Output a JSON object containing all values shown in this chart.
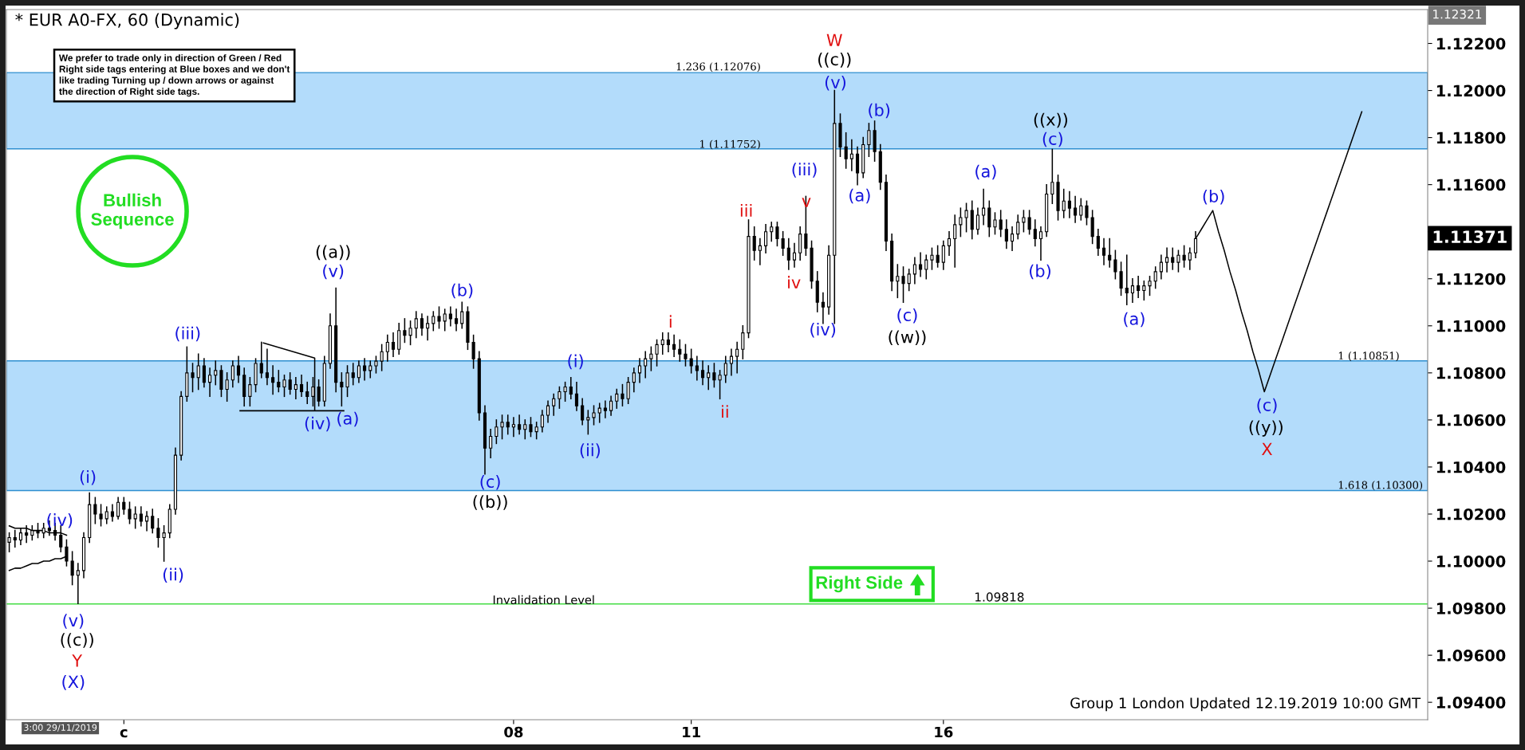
{
  "chart_data": {
    "type": "candlestick",
    "title": "* EUR A0-FX, 60 (Dynamic)",
    "color": "#000000",
    "ylim": [
      1.09326,
      1.12344
    ],
    "yticks": [
      {
        "value": 1.094,
        "label": "1.09400"
      },
      {
        "value": 1.096,
        "label": "1.09600"
      },
      {
        "value": 1.098,
        "label": "1.09800"
      },
      {
        "value": 1.1,
        "label": "1.10000"
      },
      {
        "value": 1.102,
        "label": "1.10200"
      },
      {
        "value": 1.104,
        "label": "1.10400"
      },
      {
        "value": 1.106,
        "label": "1.10600"
      },
      {
        "value": 1.108,
        "label": "1.10800"
      },
      {
        "value": 1.11,
        "label": "1.11000"
      },
      {
        "value": 1.112,
        "label": "1.11200"
      },
      {
        "value": 1.114,
        "label": null
      },
      {
        "value": 1.116,
        "label": "1.11600"
      },
      {
        "value": 1.118,
        "label": "1.11800"
      },
      {
        "value": 1.12,
        "label": "1.12000"
      },
      {
        "value": 1.122,
        "label": "1.12200"
      }
    ],
    "categories": [
      null,
      null,
      null,
      null,
      null,
      null,
      null,
      null,
      null,
      null,
      null,
      null,
      null,
      null,
      null,
      null,
      null,
      null,
      null,
      null,
      "c",
      null,
      null,
      null,
      null,
      null,
      null,
      null,
      null,
      null,
      null,
      null,
      null,
      null,
      null,
      null,
      null,
      null,
      null,
      null,
      null,
      null,
      null,
      null,
      null,
      null,
      null,
      null,
      null,
      null,
      null,
      null,
      null,
      null,
      null,
      null,
      null,
      null,
      null,
      null,
      null,
      null,
      null,
      null,
      null,
      null,
      null,
      null,
      null,
      null,
      null,
      null,
      null,
      null,
      null,
      null,
      null,
      null,
      null,
      null,
      null,
      null,
      null,
      null,
      null,
      null,
      null,
      null,
      "08",
      null,
      null,
      null,
      null,
      null,
      null,
      null,
      null,
      null,
      null,
      null,
      null,
      null,
      null,
      null,
      null,
      null,
      null,
      null,
      null,
      null,
      null,
      null,
      null,
      null,
      null,
      null,
      null,
      null,
      null,
      "11",
      null,
      null,
      null,
      null,
      null,
      null,
      null,
      null,
      null,
      null,
      null,
      null,
      null,
      null,
      null,
      null,
      null,
      null,
      null,
      null,
      null,
      null,
      null,
      null,
      null,
      null,
      null,
      null,
      null,
      null,
      null,
      null,
      null,
      null,
      null,
      null,
      null,
      null,
      null,
      null,
      null,
      null,
      null,
      "16",
      null,
      null,
      null,
      null,
      null,
      null,
      null,
      null,
      null,
      null,
      null,
      null,
      null,
      null,
      null,
      null,
      null,
      null,
      null,
      null,
      null,
      null,
      null,
      null,
      null,
      null,
      null,
      null,
      null,
      null,
      null,
      null,
      null,
      null,
      null,
      null,
      null,
      null,
      null,
      null,
      null,
      null,
      null,
      null,
      null,
      null,
      null,
      null,
      null,
      null,
      null,
      null,
      null,
      null,
      null,
      null,
      null,
      null,
      null,
      null,
      null,
      null,
      null,
      null,
      null,
      null,
      null,
      null,
      null,
      null,
      null,
      null,
      null,
      null,
      null,
      null,
      null,
      null,
      null,
      null,
      null,
      null,
      null,
      null
    ],
    "ohlc": [
      [
        1.1008,
        1.1012,
        1.1004,
        1.101
      ],
      [
        1.101,
        1.1013,
        1.1006,
        1.1009
      ],
      [
        1.1009,
        1.1014,
        1.1007,
        1.1012
      ],
      [
        1.1012,
        1.1015,
        1.1008,
        1.1011
      ],
      [
        1.1011,
        1.1015,
        1.1009,
        1.1013
      ],
      [
        1.1013,
        1.1016,
        1.101,
        1.1012
      ],
      [
        1.1012,
        1.1016,
        1.101,
        1.1014
      ],
      [
        1.1014,
        1.1017,
        1.1011,
        1.1013
      ],
      [
        1.1013,
        1.1016,
        1.1009,
        1.1011
      ],
      [
        1.1011,
        1.1015,
        1.1004,
        1.1006
      ],
      [
        1.1006,
        1.1009,
        1.0998,
        1.1
      ],
      [
        1.1,
        1.1004,
        1.099,
        1.0994
      ],
      [
        1.0994,
        1.0999,
        1.0982,
        1.0996
      ],
      [
        1.0996,
        1.1012,
        1.0993,
        1.101
      ],
      [
        1.101,
        1.1029,
        1.1008,
        1.1024
      ],
      [
        1.1024,
        1.1027,
        1.1016,
        1.102
      ],
      [
        1.102,
        1.1024,
        1.1015,
        1.1018
      ],
      [
        1.1018,
        1.1023,
        1.1016,
        1.1021
      ],
      [
        1.1021,
        1.1024,
        1.1017,
        1.1019
      ],
      [
        1.1019,
        1.1027,
        1.1018,
        1.1025
      ],
      [
        1.1025,
        1.1027,
        1.102,
        1.1022
      ],
      [
        1.1022,
        1.1025,
        1.1016,
        1.1018
      ],
      [
        1.1018,
        1.1023,
        1.1014,
        1.102
      ],
      [
        1.102,
        1.1023,
        1.1015,
        1.1017
      ],
      [
        1.1017,
        1.1021,
        1.1013,
        1.1019
      ],
      [
        1.1019,
        1.1022,
        1.1012,
        1.1014
      ],
      [
        1.1014,
        1.1018,
        1.1006,
        1.101
      ],
      [
        1.101,
        1.1015,
        1.1,
        1.1012
      ],
      [
        1.1012,
        1.1024,
        1.101,
        1.1022
      ],
      [
        1.1022,
        1.1048,
        1.102,
        1.1045
      ],
      [
        1.1045,
        1.1072,
        1.1043,
        1.107
      ],
      [
        1.107,
        1.1091,
        1.1068,
        1.108
      ],
      [
        1.108,
        1.1084,
        1.1072,
        1.1078
      ],
      [
        1.1078,
        1.1088,
        1.1073,
        1.1083
      ],
      [
        1.1083,
        1.1086,
        1.1074,
        1.1076
      ],
      [
        1.1076,
        1.1082,
        1.107,
        1.1079
      ],
      [
        1.1079,
        1.1085,
        1.1075,
        1.1081
      ],
      [
        1.1081,
        1.1083,
        1.107,
        1.1073
      ],
      [
        1.1073,
        1.108,
        1.1068,
        1.1077
      ],
      [
        1.1077,
        1.1085,
        1.1074,
        1.1083
      ],
      [
        1.1083,
        1.1087,
        1.1076,
        1.1079
      ],
      [
        1.1079,
        1.1082,
        1.1066,
        1.107
      ],
      [
        1.107,
        1.1078,
        1.1066,
        1.1075
      ],
      [
        1.1075,
        1.1086,
        1.1072,
        1.1084
      ],
      [
        1.1084,
        1.1093,
        1.1078,
        1.108
      ],
      [
        1.108,
        1.109,
        1.1075,
        1.1078
      ],
      [
        1.1078,
        1.1083,
        1.1071,
        1.1076
      ],
      [
        1.1076,
        1.1081,
        1.1072,
        1.1074
      ],
      [
        1.1074,
        1.1079,
        1.107,
        1.1077
      ],
      [
        1.1077,
        1.108,
        1.1071,
        1.1073
      ],
      [
        1.1073,
        1.1078,
        1.1069,
        1.1075
      ],
      [
        1.1075,
        1.1079,
        1.107,
        1.1072
      ],
      [
        1.1072,
        1.1076,
        1.1067,
        1.107
      ],
      [
        1.107,
        1.1078,
        1.1066,
        1.1074
      ],
      [
        1.1074,
        1.1077,
        1.1066,
        1.1068
      ],
      [
        1.1068,
        1.1087,
        1.1066,
        1.1084
      ],
      [
        1.1084,
        1.1105,
        1.1082,
        1.11
      ],
      [
        1.11,
        1.1116,
        1.1072,
        1.1076
      ],
      [
        1.1076,
        1.108,
        1.1066,
        1.1074
      ],
      [
        1.1074,
        1.1083,
        1.107,
        1.108
      ],
      [
        1.108,
        1.1084,
        1.1075,
        1.1078
      ],
      [
        1.1078,
        1.1085,
        1.1076,
        1.1083
      ],
      [
        1.1083,
        1.1086,
        1.1077,
        1.1081
      ],
      [
        1.1081,
        1.1085,
        1.1078,
        1.1083
      ],
      [
        1.1083,
        1.1087,
        1.108,
        1.1085
      ],
      [
        1.1085,
        1.1092,
        1.1081,
        1.1089
      ],
      [
        1.1089,
        1.1096,
        1.1085,
        1.1093
      ],
      [
        1.1093,
        1.1097,
        1.1087,
        1.109
      ],
      [
        1.109,
        1.1101,
        1.1088,
        1.1098
      ],
      [
        1.1098,
        1.1103,
        1.1093,
        1.1096
      ],
      [
        1.1096,
        1.1102,
        1.1092,
        1.1099
      ],
      [
        1.1099,
        1.1106,
        1.1095,
        1.1103
      ],
      [
        1.1103,
        1.1105,
        1.1096,
        1.1099
      ],
      [
        1.1099,
        1.1104,
        1.1094,
        1.1101
      ],
      [
        1.1101,
        1.1106,
        1.1098,
        1.1104
      ],
      [
        1.1104,
        1.1108,
        1.1099,
        1.1102
      ],
      [
        1.1102,
        1.1107,
        1.1098,
        1.1105
      ],
      [
        1.1105,
        1.1108,
        1.11,
        1.1103
      ],
      [
        1.1103,
        1.1107,
        1.1098,
        1.1101
      ],
      [
        1.1101,
        1.111,
        1.1099,
        1.1106
      ],
      [
        1.1106,
        1.1108,
        1.109,
        1.1093
      ],
      [
        1.1093,
        1.1096,
        1.1082,
        1.1086
      ],
      [
        1.1086,
        1.1089,
        1.106,
        1.1063
      ],
      [
        1.1063,
        1.1066,
        1.1037,
        1.1048
      ],
      [
        1.1048,
        1.1056,
        1.1044,
        1.1053
      ],
      [
        1.1053,
        1.106,
        1.105,
        1.1057
      ],
      [
        1.1057,
        1.1062,
        1.1052,
        1.1059
      ],
      [
        1.1059,
        1.1062,
        1.1054,
        1.1057
      ],
      [
        1.1057,
        1.1061,
        1.1053,
        1.1058
      ],
      [
        1.1058,
        1.1062,
        1.1054,
        1.1056
      ],
      [
        1.1056,
        1.106,
        1.1052,
        1.1058
      ],
      [
        1.1058,
        1.1061,
        1.1053,
        1.1055
      ],
      [
        1.1055,
        1.1059,
        1.1052,
        1.1057
      ],
      [
        1.1057,
        1.1064,
        1.1055,
        1.1062
      ],
      [
        1.1062,
        1.1068,
        1.1059,
        1.1066
      ],
      [
        1.1066,
        1.1071,
        1.1062,
        1.1069
      ],
      [
        1.1069,
        1.1074,
        1.1065,
        1.1072
      ],
      [
        1.1072,
        1.1076,
        1.1068,
        1.1074
      ],
      [
        1.1074,
        1.1078,
        1.1069,
        1.1071
      ],
      [
        1.1071,
        1.1076,
        1.1064,
        1.1066
      ],
      [
        1.1066,
        1.1069,
        1.1058,
        1.106
      ],
      [
        1.106,
        1.1064,
        1.1054,
        1.1061
      ],
      [
        1.1061,
        1.1066,
        1.1058,
        1.1063
      ],
      [
        1.1063,
        1.1067,
        1.1059,
        1.1065
      ],
      [
        1.1065,
        1.1068,
        1.1061,
        1.1064
      ],
      [
        1.1064,
        1.107,
        1.1062,
        1.1068
      ],
      [
        1.1068,
        1.1073,
        1.1065,
        1.1071
      ],
      [
        1.1071,
        1.1075,
        1.1066,
        1.1069
      ],
      [
        1.1069,
        1.1078,
        1.1067,
        1.1076
      ],
      [
        1.1076,
        1.1082,
        1.1072,
        1.108
      ],
      [
        1.108,
        1.1086,
        1.1076,
        1.1083
      ],
      [
        1.1083,
        1.1089,
        1.1078,
        1.1086
      ],
      [
        1.1086,
        1.1091,
        1.1081,
        1.1088
      ],
      [
        1.1088,
        1.1094,
        1.1083,
        1.1092
      ],
      [
        1.1092,
        1.1097,
        1.1088,
        1.1094
      ],
      [
        1.1094,
        1.1097,
        1.1089,
        1.1092
      ],
      [
        1.1092,
        1.1096,
        1.1087,
        1.109
      ],
      [
        1.109,
        1.1094,
        1.1085,
        1.1088
      ],
      [
        1.1088,
        1.1092,
        1.1083,
        1.1086
      ],
      [
        1.1086,
        1.109,
        1.108,
        1.1083
      ],
      [
        1.1083,
        1.1087,
        1.1077,
        1.1081
      ],
      [
        1.1081,
        1.1085,
        1.1075,
        1.1078
      ],
      [
        1.1078,
        1.1083,
        1.1073,
        1.108
      ],
      [
        1.108,
        1.1084,
        1.1074,
        1.1077
      ],
      [
        1.1077,
        1.1081,
        1.1069,
        1.1079
      ],
      [
        1.1079,
        1.1087,
        1.1076,
        1.1084
      ],
      [
        1.1084,
        1.109,
        1.1079,
        1.1087
      ],
      [
        1.1087,
        1.1093,
        1.108,
        1.109
      ],
      [
        1.109,
        1.11,
        1.1086,
        1.1097
      ],
      [
        1.1097,
        1.1145,
        1.1095,
        1.1138
      ],
      [
        1.1138,
        1.1142,
        1.1128,
        1.1132
      ],
      [
        1.1132,
        1.1137,
        1.1126,
        1.1134
      ],
      [
        1.1134,
        1.1143,
        1.1131,
        1.114
      ],
      [
        1.114,
        1.1144,
        1.1136,
        1.1142
      ],
      [
        1.1142,
        1.1144,
        1.1134,
        1.1137
      ],
      [
        1.1137,
        1.114,
        1.113,
        1.1133
      ],
      [
        1.1133,
        1.1137,
        1.1124,
        1.1128
      ],
      [
        1.1128,
        1.1135,
        1.1125,
        1.1131
      ],
      [
        1.1131,
        1.1142,
        1.1128,
        1.1139
      ],
      [
        1.1139,
        1.1155,
        1.113,
        1.1133
      ],
      [
        1.1133,
        1.1136,
        1.1116,
        1.1119
      ],
      [
        1.1119,
        1.1123,
        1.1106,
        1.111
      ],
      [
        1.111,
        1.1114,
        1.1101,
        1.1108
      ],
      [
        1.1108,
        1.1134,
        1.1105,
        1.113
      ],
      [
        1.113,
        1.12,
        1.1101,
        1.1186
      ],
      [
        1.1186,
        1.119,
        1.1172,
        1.1176
      ],
      [
        1.1176,
        1.1182,
        1.1167,
        1.1171
      ],
      [
        1.1171,
        1.1179,
        1.1166,
        1.1173
      ],
      [
        1.1173,
        1.1176,
        1.116,
        1.1165
      ],
      [
        1.1165,
        1.118,
        1.1163,
        1.1177
      ],
      [
        1.1177,
        1.1186,
        1.1172,
        1.1183
      ],
      [
        1.1183,
        1.1187,
        1.117,
        1.1174
      ],
      [
        1.1174,
        1.1177,
        1.1158,
        1.1161
      ],
      [
        1.1161,
        1.1164,
        1.1132,
        1.1136
      ],
      [
        1.1136,
        1.1139,
        1.1115,
        1.1119
      ],
      [
        1.1119,
        1.1126,
        1.1112,
        1.1121
      ],
      [
        1.1121,
        1.1125,
        1.111,
        1.1118
      ],
      [
        1.1118,
        1.1124,
        1.1115,
        1.1122
      ],
      [
        1.1122,
        1.1129,
        1.1118,
        1.1126
      ],
      [
        1.1126,
        1.1131,
        1.1121,
        1.1124
      ],
      [
        1.1124,
        1.113,
        1.112,
        1.1128
      ],
      [
        1.1128,
        1.1133,
        1.1124,
        1.113
      ],
      [
        1.113,
        1.1134,
        1.1125,
        1.1127
      ],
      [
        1.1127,
        1.1136,
        1.1124,
        1.1134
      ],
      [
        1.1134,
        1.114,
        1.113,
        1.1137
      ],
      [
        1.1137,
        1.1147,
        1.1125,
        1.1143
      ],
      [
        1.1143,
        1.115,
        1.1138,
        1.1146
      ],
      [
        1.1146,
        1.1152,
        1.114,
        1.1149
      ],
      [
        1.1149,
        1.1153,
        1.1137,
        1.1141
      ],
      [
        1.1141,
        1.115,
        1.1139,
        1.1147
      ],
      [
        1.1147,
        1.1158,
        1.1143,
        1.115
      ],
      [
        1.115,
        1.1153,
        1.1138,
        1.1142
      ],
      [
        1.1142,
        1.1148,
        1.1139,
        1.1145
      ],
      [
        1.1145,
        1.1149,
        1.1138,
        1.1141
      ],
      [
        1.1141,
        1.1145,
        1.1133,
        1.1136
      ],
      [
        1.1136,
        1.1142,
        1.1132,
        1.1139
      ],
      [
        1.1139,
        1.1147,
        1.1137,
        1.1144
      ],
      [
        1.1144,
        1.1149,
        1.114,
        1.1146
      ],
      [
        1.1146,
        1.1149,
        1.1139,
        1.1141
      ],
      [
        1.1141,
        1.1145,
        1.1134,
        1.1137
      ],
      [
        1.1137,
        1.1142,
        1.1128,
        1.114
      ],
      [
        1.114,
        1.116,
        1.1138,
        1.1156
      ],
      [
        1.1156,
        1.1175,
        1.1152,
        1.1161
      ],
      [
        1.1161,
        1.1164,
        1.1145,
        1.1149
      ],
      [
        1.1149,
        1.1158,
        1.1146,
        1.1153
      ],
      [
        1.1153,
        1.1157,
        1.1146,
        1.115
      ],
      [
        1.115,
        1.1155,
        1.1144,
        1.1147
      ],
      [
        1.1147,
        1.1154,
        1.1145,
        1.1151
      ],
      [
        1.1151,
        1.1153,
        1.1143,
        1.1146
      ],
      [
        1.1146,
        1.1149,
        1.1135,
        1.1138
      ],
      [
        1.1138,
        1.1141,
        1.113,
        1.1133
      ],
      [
        1.1133,
        1.1137,
        1.1126,
        1.113
      ],
      [
        1.113,
        1.1137,
        1.1125,
        1.1128
      ],
      [
        1.1128,
        1.1132,
        1.112,
        1.1123
      ],
      [
        1.1123,
        1.1127,
        1.1113,
        1.1116
      ],
      [
        1.1116,
        1.113,
        1.1109,
        1.1114
      ],
      [
        1.1114,
        1.112,
        1.111,
        1.1117
      ],
      [
        1.1117,
        1.1121,
        1.1112,
        1.1115
      ],
      [
        1.1115,
        1.1119,
        1.1111,
        1.1117
      ],
      [
        1.1117,
        1.1121,
        1.1113,
        1.1119
      ],
      [
        1.1119,
        1.1125,
        1.1116,
        1.1123
      ],
      [
        1.1123,
        1.113,
        1.112,
        1.1127
      ],
      [
        1.1127,
        1.1133,
        1.1123,
        1.1129
      ],
      [
        1.1129,
        1.1133,
        1.1124,
        1.1127
      ],
      [
        1.1127,
        1.1132,
        1.1123,
        1.113
      ],
      [
        1.113,
        1.1134,
        1.1125,
        1.1128
      ],
      [
        1.1128,
        1.1133,
        1.1124,
        1.1131
      ],
      [
        1.1131,
        1.114,
        1.1129,
        1.1137
      ],
      null,
      null,
      null,
      null,
      null,
      null,
      null,
      null,
      null,
      null,
      null,
      null,
      null,
      null,
      null,
      null,
      null,
      null,
      null,
      null,
      null,
      null,
      null,
      null,
      null,
      null,
      null,
      null,
      null,
      null,
      null,
      null,
      null,
      null,
      null,
      null,
      null,
      null,
      null,
      null
    ],
    "series": [
      {
        "type": "line",
        "color": "#000000",
        "values": [
          null,
          null,
          null,
          null,
          null,
          null,
          null,
          null,
          null,
          null,
          null,
          null,
          null,
          null,
          null,
          null,
          null,
          null,
          null,
          null,
          null,
          null,
          null,
          null,
          null,
          null,
          null,
          null,
          null,
          null,
          null,
          null,
          null,
          null,
          null,
          null,
          null,
          null,
          null,
          null,
          null,
          null,
          null,
          null,
          null,
          null,
          null,
          null,
          null,
          null,
          null,
          null,
          null,
          null,
          null,
          null,
          null,
          null,
          null,
          null,
          null,
          null,
          null,
          null,
          null,
          null,
          null,
          null,
          null,
          null,
          null,
          null,
          null,
          null,
          null,
          null,
          null,
          null,
          null,
          null,
          null,
          null,
          null,
          null,
          null,
          null,
          null,
          null,
          null,
          null,
          null,
          null,
          null,
          null,
          null,
          null,
          null,
          null,
          null,
          null,
          null,
          null,
          null,
          null,
          null,
          null,
          null,
          null,
          null,
          null,
          null,
          null,
          null,
          null,
          null,
          null,
          null,
          null,
          null,
          null,
          null,
          null,
          null,
          null,
          null,
          null,
          null,
          null,
          null,
          null,
          null,
          null,
          null,
          null,
          null,
          null,
          null,
          null,
          null,
          null,
          null,
          null,
          null,
          null,
          null,
          null,
          null,
          null,
          null,
          null,
          null,
          null,
          null,
          null,
          null,
          null,
          null,
          null,
          null,
          null,
          null,
          null,
          null,
          null,
          null,
          null,
          null,
          null,
          null,
          null,
          null,
          null,
          null,
          null,
          null,
          null,
          null,
          null,
          null,
          null,
          null,
          null,
          null,
          null,
          null,
          null,
          null,
          null,
          null,
          null,
          null,
          null,
          null,
          null,
          null,
          null,
          null,
          null,
          null,
          null,
          null,
          null,
          null,
          null,
          null,
          null,
          null,
          1.1137,
          1.1141,
          1.1145,
          1.1149,
          1.114,
          1.1132,
          1.1123,
          1.1115,
          1.1106,
          1.1098,
          1.1089,
          1.1081,
          1.1072,
          1.1079,
          1.1086,
          1.1093,
          1.11,
          1.1107,
          1.1114,
          1.1121,
          1.1128,
          1.1135,
          1.1142,
          1.1149,
          1.1156,
          1.1163,
          1.117,
          1.1177,
          1.1184,
          1.1191,
          null,
          null,
          null,
          null,
          null,
          null,
          null,
          null,
          null,
          null,
          null
        ]
      },
      {
        "type": "line",
        "color": "#000000",
        "values": [
          1.1015,
          1.1014,
          1.1014,
          1.1014,
          1.1013,
          1.1013,
          1.1013,
          1.1012,
          1.1012,
          1.1012,
          1.1011,
          null,
          null,
          null,
          null,
          null,
          null,
          null,
          null,
          null,
          null,
          null,
          null,
          null,
          null,
          null,
          null,
          null,
          null,
          null,
          null,
          null,
          null,
          null,
          null,
          null,
          null,
          null,
          null,
          null,
          null,
          null,
          null,
          null,
          null,
          null,
          null,
          null,
          null,
          null,
          null,
          null,
          null,
          null,
          null,
          null,
          null,
          null,
          null,
          null,
          null,
          null,
          null,
          null,
          null,
          null,
          null,
          null,
          null,
          null,
          null,
          null,
          null,
          null,
          null,
          null,
          null,
          null,
          null,
          null,
          null,
          null,
          null,
          null,
          null,
          null,
          null,
          null,
          null,
          null,
          null,
          null,
          null,
          null,
          null,
          null,
          null,
          null,
          null,
          null,
          null,
          null,
          null,
          null,
          null,
          null,
          null,
          null,
          null,
          null,
          null,
          null,
          null,
          null,
          null,
          null,
          null,
          null,
          null,
          null,
          null,
          null,
          null,
          null,
          null,
          null,
          null,
          null,
          null,
          null,
          null,
          null,
          null,
          null,
          null,
          null,
          null,
          null,
          null,
          null,
          null,
          null,
          null,
          null,
          null,
          null,
          null,
          null,
          null,
          null,
          null,
          null,
          null,
          null,
          null,
          null,
          null,
          null,
          null,
          null,
          null,
          null,
          null,
          null,
          null,
          null,
          null,
          null,
          null,
          null,
          null,
          null,
          null,
          null,
          null,
          null,
          null,
          null,
          null,
          null,
          null,
          null,
          null,
          null,
          null,
          null,
          null,
          null,
          null,
          null,
          null,
          null,
          null,
          null,
          null,
          null,
          null,
          null,
          null,
          null,
          null,
          null,
          null,
          null,
          null,
          null,
          null,
          null,
          null,
          null,
          null,
          null,
          null,
          null,
          null,
          null,
          null,
          null,
          null,
          null,
          null,
          null,
          null,
          null,
          null,
          null,
          null,
          null,
          null,
          null,
          null,
          null,
          null,
          null,
          null,
          null,
          null,
          null,
          null,
          null,
          null,
          null,
          null,
          null,
          null,
          null,
          null,
          null
        ]
      },
      {
        "type": "line",
        "color": "#000000",
        "values": [
          1.0996,
          1.0997,
          1.0997,
          1.0998,
          1.0999,
          1.0999,
          1.1,
          1.1,
          1.1001,
          1.1001,
          1.1002,
          null,
          null,
          null,
          null,
          null,
          null,
          null,
          null,
          null,
          null,
          null,
          null,
          null,
          null,
          null,
          null,
          null,
          null,
          null,
          null,
          null,
          null,
          null,
          null,
          null,
          null,
          null,
          null,
          null,
          null,
          null,
          null,
          null,
          null,
          null,
          null,
          null,
          null,
          null,
          null,
          null,
          null,
          null,
          null,
          null,
          null,
          null,
          null,
          null,
          null,
          null,
          null,
          null,
          null,
          null,
          null,
          null,
          null,
          null,
          null,
          null,
          null,
          null,
          null,
          null,
          null,
          null,
          null,
          null,
          null,
          null,
          null,
          null,
          null,
          null,
          null,
          null,
          null,
          null,
          null,
          null,
          null,
          null,
          null,
          null,
          null,
          null,
          null,
          null,
          null,
          null,
          null,
          null,
          null,
          null,
          null,
          null,
          null,
          null,
          null,
          null,
          null,
          null,
          null,
          null,
          null,
          null,
          null,
          null,
          null,
          null,
          null,
          null,
          null,
          null,
          null,
          null,
          null,
          null,
          null,
          null,
          null,
          null,
          null,
          null,
          null,
          null,
          null,
          null,
          null,
          null,
          null,
          null,
          null,
          null,
          null,
          null,
          null,
          null,
          null,
          null,
          null,
          null,
          null,
          null,
          null,
          null,
          null,
          null,
          null,
          null,
          null,
          null,
          null,
          null,
          null,
          null,
          null,
          null,
          null,
          null,
          null,
          null,
          null,
          null,
          null,
          null,
          null,
          null,
          null,
          null,
          null,
          null,
          null,
          null,
          null,
          null,
          null,
          null,
          null,
          null,
          null,
          null,
          null,
          null,
          null,
          null,
          null,
          null,
          null,
          null,
          null,
          null,
          null,
          null,
          null,
          null,
          null,
          null,
          null,
          null,
          null,
          null,
          null,
          null,
          null,
          null,
          null,
          null,
          null,
          null,
          null,
          null,
          null,
          null,
          null,
          null,
          null,
          null,
          null,
          null,
          null,
          null,
          null,
          null,
          null,
          null,
          null,
          null,
          null,
          null,
          null,
          null,
          null,
          null,
          null,
          null
        ]
      }
    ],
    "bands": [
      {
        "axis": "y",
        "from": 1.11752,
        "to": 1.12076,
        "color": "#b3dcfb"
      },
      {
        "axis": "y",
        "from": 1.103,
        "to": 1.10851,
        "color": "#b3dcfb"
      }
    ],
    "ref_lines": [
      {
        "axis": "y",
        "value": 1.09818,
        "label": "1.09818",
        "color": "#44dd44"
      }
    ],
    "annotations": [
      "We prefer to trade only in direction of Green / Red\nRight side tags entering at Blue boxes and we don't\nlike trading Turning up / down arrows or against\nthe direction of Right side tags.",
      "Bullish\nSequence",
      "Right Side",
      "Group 1 London Updated 12.19.2019 10:00 GMT",
      "1.12321",
      "1.11371",
      "3:00 29/11/2019",
      "Invalidation Level",
      "1.236 (1.12076)",
      "1 (1.11752)",
      "1 (1.10851)",
      "1.618 (1.10300)",
      "(iv)",
      "(v)",
      "((c))",
      "Y",
      "(X)",
      "(i)",
      "(ii)",
      "(iii)",
      {
        "text": "(iv)",
        "y": 1.1066
      },
      "(a)",
      "((a))",
      "(v)",
      "(b)",
      "(c)",
      "((b))",
      "(i)",
      "(ii)",
      "i",
      "ii",
      "iii",
      "iv",
      "v",
      "(iii)",
      "(iv)",
      "(v)",
      "((c))",
      "W",
      "(a)",
      "(b)",
      "(c)",
      "((w))",
      "(a)",
      "(b)",
      "(c)",
      "((x))",
      "(a)",
      "(b)",
      "(c)",
      "((y))",
      "X"
    ]
  }
}
